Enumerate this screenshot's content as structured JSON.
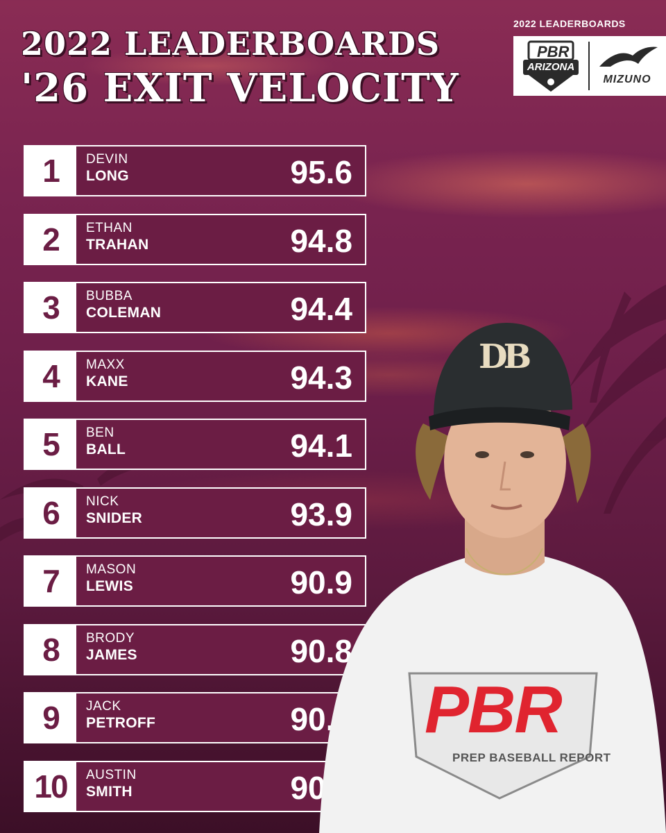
{
  "header": {
    "title_line1": "2022 LEADERBOARDS",
    "title_line2": "'26 EXIT VELOCITY"
  },
  "logos": {
    "caption": "2022 LEADERBOARDS",
    "pbr_top": "PBR",
    "pbr_bottom": "ARIZONA",
    "sponsor": "MIZUNO"
  },
  "leaderboard": [
    {
      "rank": "1",
      "first": "DEVIN",
      "last": "LONG",
      "value": "95.6"
    },
    {
      "rank": "2",
      "first": "ETHAN",
      "last": "TRAHAN",
      "value": "94.8"
    },
    {
      "rank": "3",
      "first": "BUBBA",
      "last": "COLEMAN",
      "value": "94.4"
    },
    {
      "rank": "4",
      "first": "MAXX",
      "last": "KANE",
      "value": "94.3"
    },
    {
      "rank": "5",
      "first": "BEN",
      "last": "BALL",
      "value": "94.1"
    },
    {
      "rank": "6",
      "first": "NICK",
      "last": "SNIDER",
      "value": "93.9"
    },
    {
      "rank": "7",
      "first": "MASON",
      "last": "LEWIS",
      "value": "90.9"
    },
    {
      "rank": "8",
      "first": "BRODY",
      "last": "JAMES",
      "value": "90.8"
    },
    {
      "rank": "9",
      "first": "JACK",
      "last": "PETROFF",
      "value": "90.6"
    },
    {
      "rank": "10",
      "first": "AUSTIN",
      "last": "SMITH",
      "value": "90.5"
    }
  ],
  "photo": {
    "cap_logo": "DB",
    "shirt_logo": "PBR",
    "shirt_text": "PREP BASEBALL REPORT"
  },
  "colors": {
    "maroon": "#6b1d44",
    "white": "#ffffff",
    "shirt_red": "#e0242f"
  }
}
